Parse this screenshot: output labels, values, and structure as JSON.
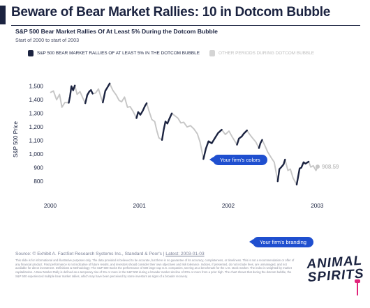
{
  "header": {
    "title": "Beware of Bear Market Rallies: 10 in Dotcom Bubble",
    "subtitle": "S&P 500 Bear Market Rallies Of At Least 5% During the Dotcom Bubble",
    "subline": "Start of 2000 to start of 2003"
  },
  "colors": {
    "rally": "#1b2340",
    "other": "#c6c6c6",
    "callout": "#1f4fcf",
    "brand_accent": "#e0247a"
  },
  "chart_data": {
    "type": "line",
    "ylabel": "S&P 500 Price",
    "xlim": [
      "2000-01-01",
      "2003-01-03"
    ],
    "ylim": [
      750,
      1560
    ],
    "y_ticks": [
      800,
      900,
      1000,
      1100,
      1200,
      1300,
      1400,
      1500
    ],
    "y_tick_labels": [
      "800",
      "900",
      "1,000",
      "1,100",
      "1,200",
      "1,300",
      "1,400",
      "1,500"
    ],
    "x_ticks": [
      "2000-01-01",
      "2001-01-01",
      "2002-01-01",
      "2003-01-01"
    ],
    "x_tick_labels": [
      "2000",
      "2001",
      "2002",
      "2003"
    ],
    "grid": false,
    "legend_position": "top-left",
    "end_label": "908.59",
    "series": [
      {
        "name": "S&P 500 BEAR MARKET RALLIES OF AT LEAST 5% IN THE DOTCOM BUBBLE",
        "role": "rally",
        "segments": [
          {
            "x": [
              "2000-03-17",
              "2000-03-22",
              "2000-03-28",
              "2000-04-04",
              "2000-04-11"
            ],
            "y": [
              1378,
              1425,
              1500,
              1470,
              1505
            ]
          },
          {
            "x": [
              "2000-05-24",
              "2000-06-01",
              "2000-06-09",
              "2000-06-16",
              "2000-06-23"
            ],
            "y": [
              1375,
              1435,
              1460,
              1472,
              1445
            ]
          },
          {
            "x": [
              "2000-08-04",
              "2000-08-14",
              "2000-08-24",
              "2000-09-01"
            ],
            "y": [
              1380,
              1465,
              1495,
              1520
            ]
          },
          {
            "x": [
              "2000-12-20",
              "2000-12-27",
              "2001-01-05",
              "2001-01-15",
              "2001-01-24",
              "2001-01-31"
            ],
            "y": [
              1265,
              1310,
              1290,
              1320,
              1355,
              1375
            ]
          },
          {
            "x": [
              "2001-04-04",
              "2001-04-11",
              "2001-04-18",
              "2001-04-26",
              "2001-05-04",
              "2001-05-14"
            ],
            "y": [
              1105,
              1180,
              1240,
              1225,
              1260,
              1300
            ]
          },
          {
            "x": [
              "2001-09-21",
              "2001-10-01",
              "2001-10-12",
              "2001-10-25",
              "2001-11-08",
              "2001-11-20",
              "2001-12-05"
            ],
            "y": [
              965,
              1040,
              1095,
              1080,
              1120,
              1155,
              1180
            ]
          },
          {
            "x": [
              "2002-02-06",
              "2002-02-14",
              "2002-02-25",
              "2002-03-05",
              "2002-03-19"
            ],
            "y": [
              1070,
              1115,
              1130,
              1150,
              1175
            ]
          },
          {
            "x": [
              "2002-05-07",
              "2002-05-13",
              "2002-05-20"
            ],
            "y": [
              1045,
              1080,
              1105
            ]
          },
          {
            "x": [
              "2002-07-23",
              "2002-07-30",
              "2002-08-07",
              "2002-08-16",
              "2002-08-22"
            ],
            "y": [
              800,
              890,
              905,
              925,
              960
            ]
          },
          {
            "x": [
              "2002-10-09",
              "2002-10-15",
              "2002-10-21",
              "2002-10-28",
              "2002-11-06",
              "2002-11-14",
              "2002-11-27"
            ],
            "y": [
              776,
              835,
              895,
              900,
              940,
              930,
              945
            ]
          }
        ]
      },
      {
        "name": "OTHER PERIODS DURING DOTCOM BUBBLE",
        "role": "other",
        "segments": [
          {
            "x": [
              "2000-01-03",
              "2000-01-14",
              "2000-01-27",
              "2000-02-08",
              "2000-02-18",
              "2000-03-01",
              "2000-03-17"
            ],
            "y": [
              1455,
              1465,
              1400,
              1440,
              1345,
              1380,
              1378
            ]
          },
          {
            "x": [
              "2000-04-11",
              "2000-04-20",
              "2000-05-02",
              "2000-05-12",
              "2000-05-24"
            ],
            "y": [
              1505,
              1440,
              1460,
              1420,
              1375
            ]
          },
          {
            "x": [
              "2000-06-23",
              "2000-07-05",
              "2000-07-17",
              "2000-07-28",
              "2000-08-04"
            ],
            "y": [
              1445,
              1450,
              1480,
              1415,
              1380
            ]
          },
          {
            "x": [
              "2000-09-01",
              "2000-09-14",
              "2000-09-28",
              "2000-10-10",
              "2000-10-20",
              "2000-11-01",
              "2000-11-13",
              "2000-11-24",
              "2000-12-06",
              "2000-12-20"
            ],
            "y": [
              1520,
              1470,
              1435,
              1395,
              1385,
              1420,
              1345,
              1350,
              1315,
              1265
            ]
          },
          {
            "x": [
              "2001-01-31",
              "2001-02-09",
              "2001-02-21",
              "2001-03-05",
              "2001-03-14",
              "2001-03-22",
              "2001-04-04"
            ],
            "y": [
              1375,
              1320,
              1255,
              1240,
              1170,
              1120,
              1105
            ]
          },
          {
            "x": [
              "2001-05-14",
              "2001-05-25",
              "2001-06-08",
              "2001-06-20",
              "2001-07-02",
              "2001-07-16",
              "2001-07-30",
              "2001-08-13",
              "2001-08-27",
              "2001-09-07",
              "2001-09-21"
            ],
            "y": [
              1300,
              1285,
              1265,
              1230,
              1235,
              1200,
              1210,
              1185,
              1150,
              1090,
              965
            ]
          },
          {
            "x": [
              "2001-12-05",
              "2001-12-20",
              "2002-01-04",
              "2002-01-18",
              "2002-02-06"
            ],
            "y": [
              1180,
              1145,
              1170,
              1125,
              1070
            ]
          },
          {
            "x": [
              "2002-03-19",
              "2002-03-28",
              "2002-04-10",
              "2002-04-24",
              "2002-05-07"
            ],
            "y": [
              1175,
              1150,
              1120,
              1090,
              1045
            ]
          },
          {
            "x": [
              "2002-05-20",
              "2002-05-31",
              "2002-06-12",
              "2002-06-26",
              "2002-07-09",
              "2002-07-23"
            ],
            "y": [
              1105,
              1065,
              1015,
              975,
              940,
              800
            ]
          },
          {
            "x": [
              "2002-08-22",
              "2002-09-03",
              "2002-09-13",
              "2002-09-24",
              "2002-10-09"
            ],
            "y": [
              960,
              880,
              890,
              825,
              776
            ]
          },
          {
            "x": [
              "2002-11-27",
              "2002-12-06",
              "2002-12-16",
              "2002-12-27",
              "2003-01-03"
            ],
            "y": [
              945,
              905,
              915,
              880,
              908.59
            ]
          }
        ]
      }
    ]
  },
  "callouts": {
    "colors": "Your firm's colors",
    "branding": "Your firm's branding"
  },
  "footer": {
    "source_prefix": "Source: © Exhibit A. FactSet Research Systems Inc., Standard & Poor's |",
    "latest": "Latest: 2003-01-03",
    "disclaimer": "This slide is for informational and illustrative purposes only. The data provided is believed to be accurate, but there is no guarantee of its accuracy, completeness, or timeliness. This is not a recommendation or offer of any financial product. Past performance is not indicative of future results, and investors should consider their own objectives and risk tolerance. Indices, if presented, do not include fees, are unmanaged, and not available for direct investment. Definitions & Methodology: The S&P 500 tracks the performance of 500 large-cap U.S. companies, serving as a benchmark for the U.S. stock market. The index is weighted by market capitalization. A Bear Market Rally is defined as a temporary rise of 5% or more in the S&P 500 during a broader market decline of 20% or more from a prior high. The chart shows that during the dotcom bubble, the S&P 500 experienced multiple bear market rallies, which may have been perceived by some investors as signs of a broader recovery."
  },
  "brand": {
    "text": "ANIMAL SPIRITS"
  }
}
